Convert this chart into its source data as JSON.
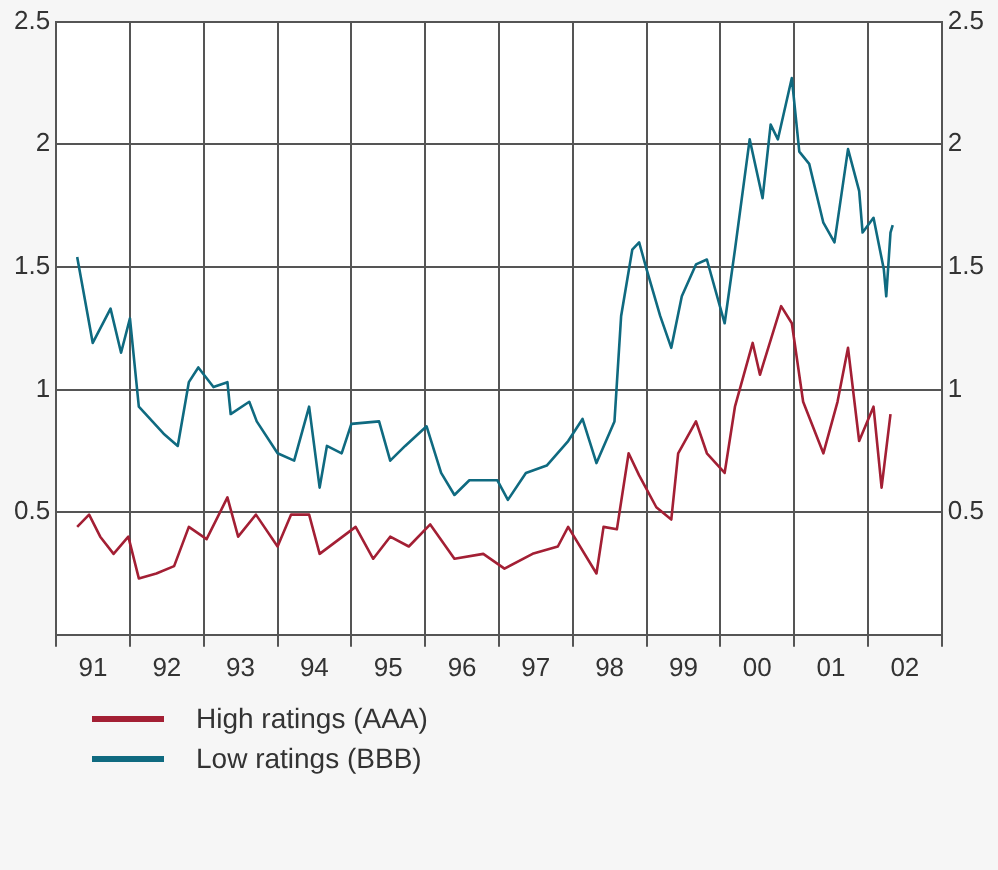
{
  "chart_data": {
    "type": "line",
    "xlim": [
      "1991-01-01",
      "2003-01-01"
    ],
    "xticks": [
      {
        "value": "1991-01-01",
        "label": null
      },
      {
        "value": "1991-07-02",
        "label": "91"
      },
      {
        "value": "1992-01-01",
        "label": null
      },
      {
        "value": "1992-07-02",
        "label": "92"
      },
      {
        "value": "1993-01-01",
        "label": null
      },
      {
        "value": "1993-07-02",
        "label": "93"
      },
      {
        "value": "1994-01-01",
        "label": null
      },
      {
        "value": "1994-07-02",
        "label": "94"
      },
      {
        "value": "1995-01-01",
        "label": null
      },
      {
        "value": "1995-07-02",
        "label": "95"
      },
      {
        "value": "1996-01-01",
        "label": null
      },
      {
        "value": "1996-07-02",
        "label": "96"
      },
      {
        "value": "1997-01-01",
        "label": null
      },
      {
        "value": "1997-07-02",
        "label": "97"
      },
      {
        "value": "1998-01-01",
        "label": null
      },
      {
        "value": "1998-07-02",
        "label": "98"
      },
      {
        "value": "1999-01-01",
        "label": null
      },
      {
        "value": "1999-07-02",
        "label": "99"
      },
      {
        "value": "2000-01-01",
        "label": null
      },
      {
        "value": "2000-07-02",
        "label": "00"
      },
      {
        "value": "2001-01-01",
        "label": null
      },
      {
        "value": "2001-07-02",
        "label": "01"
      },
      {
        "value": "2002-01-01",
        "label": null
      },
      {
        "value": "2002-07-02",
        "label": "02"
      },
      {
        "value": "2003-01-01",
        "label": null
      }
    ],
    "ylim": [
      0,
      2.5
    ],
    "yticks": [
      0.5,
      1.0,
      1.5,
      2.0,
      2.5
    ],
    "y2lim": [
      0,
      2.5
    ],
    "y2ticks": [
      0.5,
      1.0,
      1.5,
      2.0,
      2.5
    ],
    "grid": true,
    "legend": "bottom",
    "marker": "none",
    "line_style": "solid",
    "series": [
      {
        "name": "High ratings (AAA)",
        "color": "#a31f34",
        "x": [
          "1991-04-15",
          "1991-06-13",
          "1991-08-07",
          "1991-10-12",
          "1991-12-24",
          "1992-02-14",
          "1992-05-11",
          "1992-08-07",
          "1992-10-19",
          "1993-01-15",
          "1993-04-28",
          "1993-06-20",
          "1993-09-16",
          "1994-01-01",
          "1994-03-09",
          "1994-06-06",
          "1994-07-28",
          "1995-01-22",
          "1995-04-19",
          "1995-07-12",
          "1995-10-12",
          "1996-01-26",
          "1996-05-25",
          "1996-10-15",
          "1997-01-28",
          "1997-06-16",
          "1997-10-19",
          "1997-12-09",
          "1998-04-28",
          "1998-06-02",
          "1998-08-07",
          "1998-10-04",
          "1998-11-25",
          "1999-02-18",
          "1999-05-03",
          "1999-06-06",
          "1999-09-02",
          "1999-10-26",
          "2000-01-22",
          "2000-03-13",
          "2000-06-09",
          "2000-07-15",
          "2000-10-28",
          "2000-12-20",
          "2001-02-14",
          "2001-05-25",
          "2001-08-03",
          "2001-09-24",
          "2001-11-18",
          "2002-01-28",
          "2002-03-09",
          "2002-04-22"
        ],
        "values": [
          0.44,
          0.49,
          0.4,
          0.33,
          0.4,
          0.23,
          0.25,
          0.28,
          0.44,
          0.39,
          0.56,
          0.4,
          0.49,
          0.36,
          0.49,
          0.49,
          0.33,
          0.44,
          0.31,
          0.4,
          0.36,
          0.45,
          0.31,
          0.33,
          0.27,
          0.33,
          0.36,
          0.44,
          0.25,
          0.44,
          0.43,
          0.74,
          0.65,
          0.52,
          0.47,
          0.74,
          0.87,
          0.74,
          0.66,
          0.93,
          1.19,
          1.06,
          1.34,
          1.27,
          0.95,
          0.74,
          0.95,
          1.17,
          0.79,
          0.93,
          0.6,
          0.9
        ]
      },
      {
        "name": "Low ratings (BBB)",
        "color": "#0f6a80",
        "x": [
          "1991-04-15",
          "1991-05-07",
          "1991-07-01",
          "1991-09-27",
          "1991-11-18",
          "1992-01-01",
          "1992-02-14",
          "1992-06-16",
          "1992-08-25",
          "1992-10-19",
          "1992-12-05",
          "1993-02-18",
          "1993-04-28",
          "1993-05-14",
          "1993-08-14",
          "1993-09-20",
          "1994-01-01",
          "1994-03-24",
          "1994-06-06",
          "1994-07-28",
          "1994-09-02",
          "1994-11-14",
          "1995-01-01",
          "1995-05-18",
          "1995-07-12",
          "1995-09-24",
          "1996-01-08",
          "1996-03-20",
          "1996-05-25",
          "1996-08-07",
          "1996-12-24",
          "1997-02-14",
          "1997-05-14",
          "1997-08-25",
          "1997-12-09",
          "1998-02-18",
          "1998-04-28",
          "1998-07-26",
          "1998-08-28",
          "1998-10-22",
          "1998-11-25",
          "1999-01-01",
          "1999-03-09",
          "1999-05-03",
          "1999-06-24",
          "1999-09-02",
          "1999-10-26",
          "2000-01-22",
          "2000-03-13",
          "2000-05-25",
          "2000-07-28",
          "2000-09-06",
          "2000-10-12",
          "2000-12-20",
          "2001-01-26",
          "2001-03-16",
          "2001-05-25",
          "2001-07-19",
          "2001-09-24",
          "2001-11-18",
          "2001-12-05",
          "2002-01-28",
          "2002-03-20",
          "2002-04-01",
          "2002-04-22",
          "2002-05-03"
        ],
        "values": [
          1.54,
          1.44,
          1.19,
          1.33,
          1.15,
          1.29,
          0.93,
          0.82,
          0.77,
          1.03,
          1.09,
          1.01,
          1.03,
          0.9,
          0.95,
          0.87,
          0.74,
          0.71,
          0.93,
          0.6,
          0.77,
          0.74,
          0.86,
          0.87,
          0.71,
          0.77,
          0.85,
          0.66,
          0.57,
          0.63,
          0.63,
          0.55,
          0.66,
          0.69,
          0.79,
          0.88,
          0.7,
          0.87,
          1.3,
          1.57,
          1.6,
          1.49,
          1.3,
          1.17,
          1.38,
          1.51,
          1.53,
          1.27,
          1.57,
          2.02,
          1.78,
          2.08,
          2.02,
          2.27,
          1.97,
          1.92,
          1.68,
          1.6,
          1.98,
          1.81,
          1.64,
          1.7,
          1.49,
          1.38,
          1.64,
          1.67
        ]
      }
    ]
  }
}
